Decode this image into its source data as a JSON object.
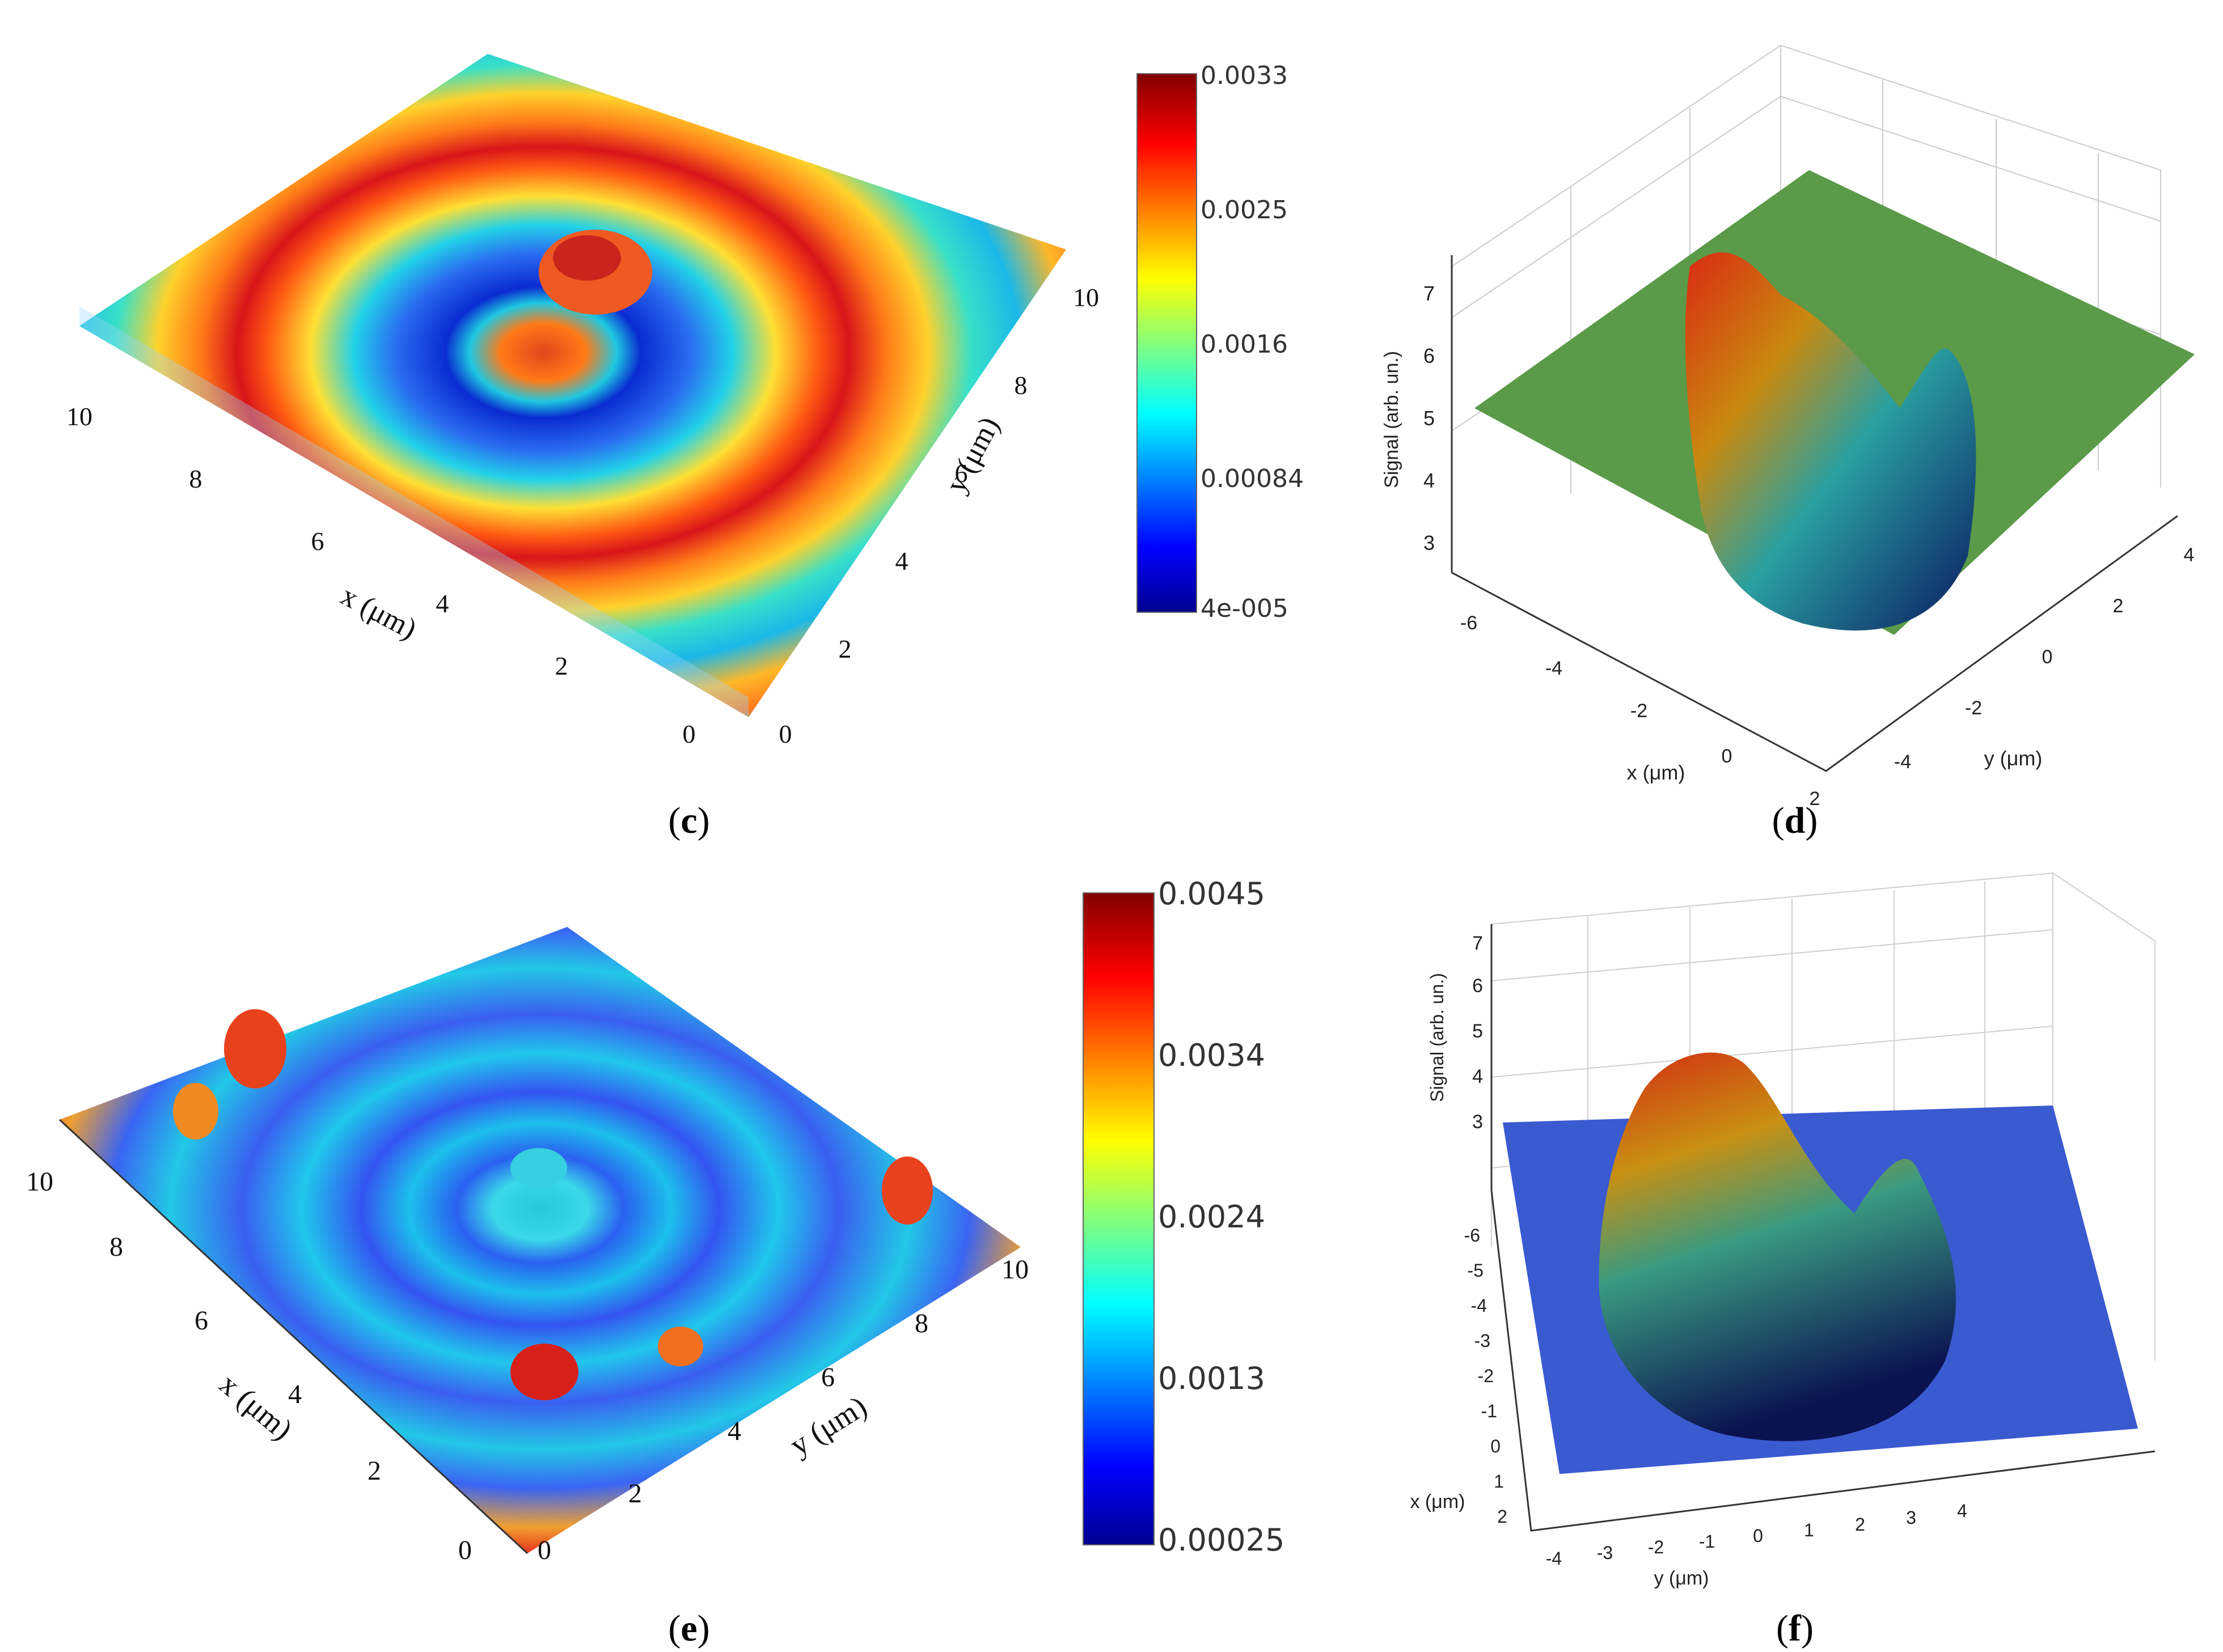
{
  "panels": {
    "c": {
      "caption_letter": "c",
      "chart_data": {
        "type": "surface3d",
        "xlabel": "x (μm)",
        "ylabel": "y (μm)",
        "x_ticks": [
          "0",
          "2",
          "4",
          "6",
          "8",
          "10"
        ],
        "y_ticks": [
          "0",
          "2",
          "4",
          "6",
          "8",
          "10"
        ],
        "xlim": [
          0,
          10
        ],
        "ylim": [
          0,
          10
        ],
        "colorbar_ticks": [
          "0.0033",
          "0.0025",
          "0.0016",
          "0.00084",
          "4e-005"
        ],
        "colorbar_range": [
          4e-05,
          0.0033
        ],
        "colormap": "jet"
      }
    },
    "d": {
      "caption_letter": "d",
      "chart_data": {
        "type": "surface3d",
        "xlabel": "x (μm)",
        "ylabel": "y (μm)",
        "zlabel": "Signal (arb. un.)",
        "x_ticks": [
          "-6",
          "-4",
          "-2",
          "0",
          "2"
        ],
        "y_ticks": [
          "-4",
          "-2",
          "0",
          "2",
          "4"
        ],
        "z_ticks": [
          "7",
          "6",
          "5",
          "4",
          "3"
        ],
        "zlim": [
          3,
          7
        ],
        "grid": true,
        "colormap": "jet-shaded"
      }
    },
    "e": {
      "caption_letter": "e",
      "chart_data": {
        "type": "surface3d",
        "xlabel": "x (μm)",
        "ylabel": "y (μm)",
        "x_ticks": [
          "0",
          "2",
          "4",
          "6",
          "8",
          "10"
        ],
        "y_ticks": [
          "0",
          "2",
          "4",
          "6",
          "8",
          "10"
        ],
        "xlim": [
          0,
          10
        ],
        "ylim": [
          0,
          10
        ],
        "colorbar_ticks": [
          "0.0045",
          "0.0034",
          "0.0024",
          "0.0013",
          "0.00025"
        ],
        "colorbar_range": [
          0.00025,
          0.0045
        ],
        "colormap": "jet"
      }
    },
    "f": {
      "caption_letter": "f",
      "chart_data": {
        "type": "surface3d",
        "xlabel": "x (μm)",
        "ylabel": "y (μm)",
        "zlabel": "Signal (arb. un.)",
        "x_ticks": [
          "-6",
          "-5",
          "-4",
          "-3",
          "-2",
          "-1",
          "0",
          "1",
          "2"
        ],
        "y_ticks": [
          "-4",
          "-3",
          "-2",
          "-1",
          "0",
          "1",
          "2",
          "3",
          "4"
        ],
        "z_ticks": [
          "7",
          "6",
          "5",
          "4",
          "3"
        ],
        "zlim": [
          3,
          7
        ],
        "grid": true,
        "colormap": "jet-shaded"
      }
    }
  }
}
